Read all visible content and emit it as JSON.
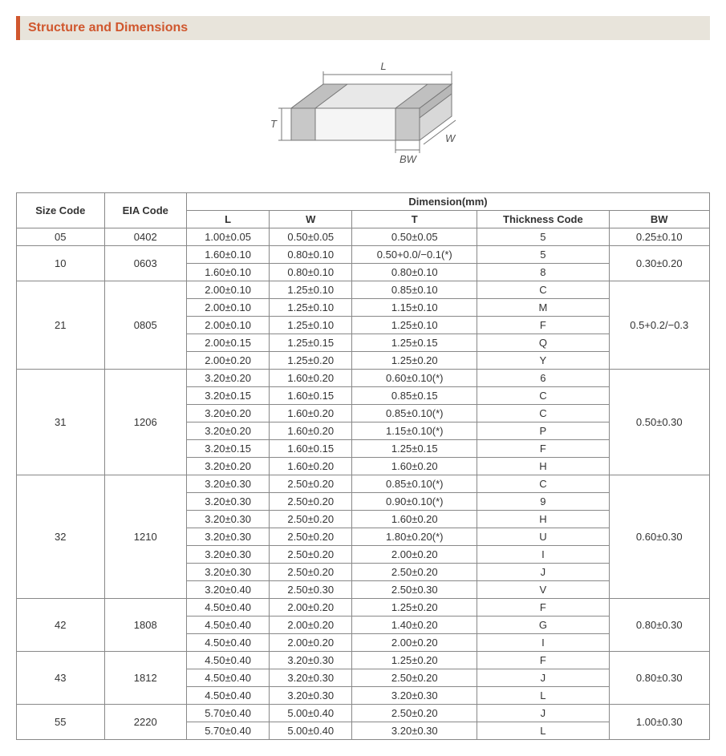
{
  "title": "Structure and Dimensions",
  "diagram": {
    "labels": {
      "L": "L",
      "W": "W",
      "T": "T",
      "BW": "BW"
    },
    "stroke": "#777777",
    "fill_top": "#e8e8e8",
    "fill_front": "#f5f5f5",
    "fill_side": "#d8d8d8",
    "band_fill": "#c8c8c8"
  },
  "table": {
    "header1": [
      "Size Code",
      "EIA Code",
      "Dimension(mm)"
    ],
    "header2": [
      "L",
      "W",
      "T",
      "Thickness  Code",
      "BW"
    ],
    "groups": [
      {
        "size": "05",
        "eia": "0402",
        "bw": "0.25±0.10",
        "rows": [
          {
            "L": "1.00±0.05",
            "W": "0.50±0.05",
            "T": "0.50±0.05",
            "tc": "5"
          }
        ]
      },
      {
        "size": "10",
        "eia": "0603",
        "bw": "0.30±0.20",
        "rows": [
          {
            "L": "1.60±0.10",
            "W": "0.80±0.10",
            "T": "0.50+0.0/−0.1(*)",
            "tc": "5"
          },
          {
            "L": "1.60±0.10",
            "W": "0.80±0.10",
            "T": "0.80±0.10",
            "tc": "8"
          }
        ]
      },
      {
        "size": "21",
        "eia": "0805",
        "bw": "0.5+0.2/−0.3",
        "rows": [
          {
            "L": "2.00±0.10",
            "W": "1.25±0.10",
            "T": "0.85±0.10",
            "tc": "C"
          },
          {
            "L": "2.00±0.10",
            "W": "1.25±0.10",
            "T": "1.15±0.10",
            "tc": "M"
          },
          {
            "L": "2.00±0.10",
            "W": "1.25±0.10",
            "T": "1.25±0.10",
            "tc": "F"
          },
          {
            "L": "2.00±0.15",
            "W": "1.25±0.15",
            "T": "1.25±0.15",
            "tc": "Q"
          },
          {
            "L": "2.00±0.20",
            "W": "1.25±0.20",
            "T": "1.25±0.20",
            "tc": "Y"
          }
        ]
      },
      {
        "size": "31",
        "eia": "1206",
        "bw": "0.50±0.30",
        "rows": [
          {
            "L": "3.20±0.20",
            "W": "1.60±0.20",
            "T": "0.60±0.10(*)",
            "tc": "6"
          },
          {
            "L": "3.20±0.15",
            "W": "1.60±0.15",
            "T": "0.85±0.15",
            "tc": "C"
          },
          {
            "L": "3.20±0.20",
            "W": "1.60±0.20",
            "T": "0.85±0.10(*)",
            "tc": "C"
          },
          {
            "L": "3.20±0.20",
            "W": "1.60±0.20",
            "T": "1.15±0.10(*)",
            "tc": "P"
          },
          {
            "L": "3.20±0.15",
            "W": "1.60±0.15",
            "T": "1.25±0.15",
            "tc": "F"
          },
          {
            "L": "3.20±0.20",
            "W": "1.60±0.20",
            "T": "1.60±0.20",
            "tc": "H"
          }
        ]
      },
      {
        "size": "32",
        "eia": "1210",
        "bw": "0.60±0.30",
        "rows": [
          {
            "L": "3.20±0.30",
            "W": "2.50±0.20",
            "T": "0.85±0.10(*)",
            "tc": "C"
          },
          {
            "L": "3.20±0.30",
            "W": "2.50±0.20",
            "T": "0.90±0.10(*)",
            "tc": "9"
          },
          {
            "L": "3.20±0.30",
            "W": "2.50±0.20",
            "T": "1.60±0.20",
            "tc": "H"
          },
          {
            "L": "3.20±0.30",
            "W": "2.50±0.20",
            "T": "1.80±0.20(*)",
            "tc": "U"
          },
          {
            "L": "3.20±0.30",
            "W": "2.50±0.20",
            "T": "2.00±0.20",
            "tc": "I"
          },
          {
            "L": "3.20±0.30",
            "W": "2.50±0.20",
            "T": "2.50±0.20",
            "tc": "J"
          },
          {
            "L": "3.20±0.40",
            "W": "2.50±0.30",
            "T": "2.50±0.30",
            "tc": "V"
          }
        ]
      },
      {
        "size": "42",
        "eia": "1808",
        "bw": "0.80±0.30",
        "rows": [
          {
            "L": "4.50±0.40",
            "W": "2.00±0.20",
            "T": "1.25±0.20",
            "tc": "F"
          },
          {
            "L": "4.50±0.40",
            "W": "2.00±0.20",
            "T": "1.40±0.20",
            "tc": "G"
          },
          {
            "L": "4.50±0.40",
            "W": "2.00±0.20",
            "T": "2.00±0.20",
            "tc": "I"
          }
        ]
      },
      {
        "size": "43",
        "eia": "1812",
        "bw": "0.80±0.30",
        "rows": [
          {
            "L": "4.50±0.40",
            "W": "3.20±0.30",
            "T": "1.25±0.20",
            "tc": "F"
          },
          {
            "L": "4.50±0.40",
            "W": "3.20±0.30",
            "T": "2.50±0.20",
            "tc": "J"
          },
          {
            "L": "4.50±0.40",
            "W": "3.20±0.30",
            "T": "3.20±0.30",
            "tc": "L"
          }
        ]
      },
      {
        "size": "55",
        "eia": "2220",
        "bw": "1.00±0.30",
        "rows": [
          {
            "L": "5.70±0.40",
            "W": "5.00±0.40",
            "T": "2.50±0.20",
            "tc": "J"
          },
          {
            "L": "5.70±0.40",
            "W": "5.00±0.40",
            "T": "3.20±0.30",
            "tc": "L"
          }
        ]
      }
    ]
  }
}
